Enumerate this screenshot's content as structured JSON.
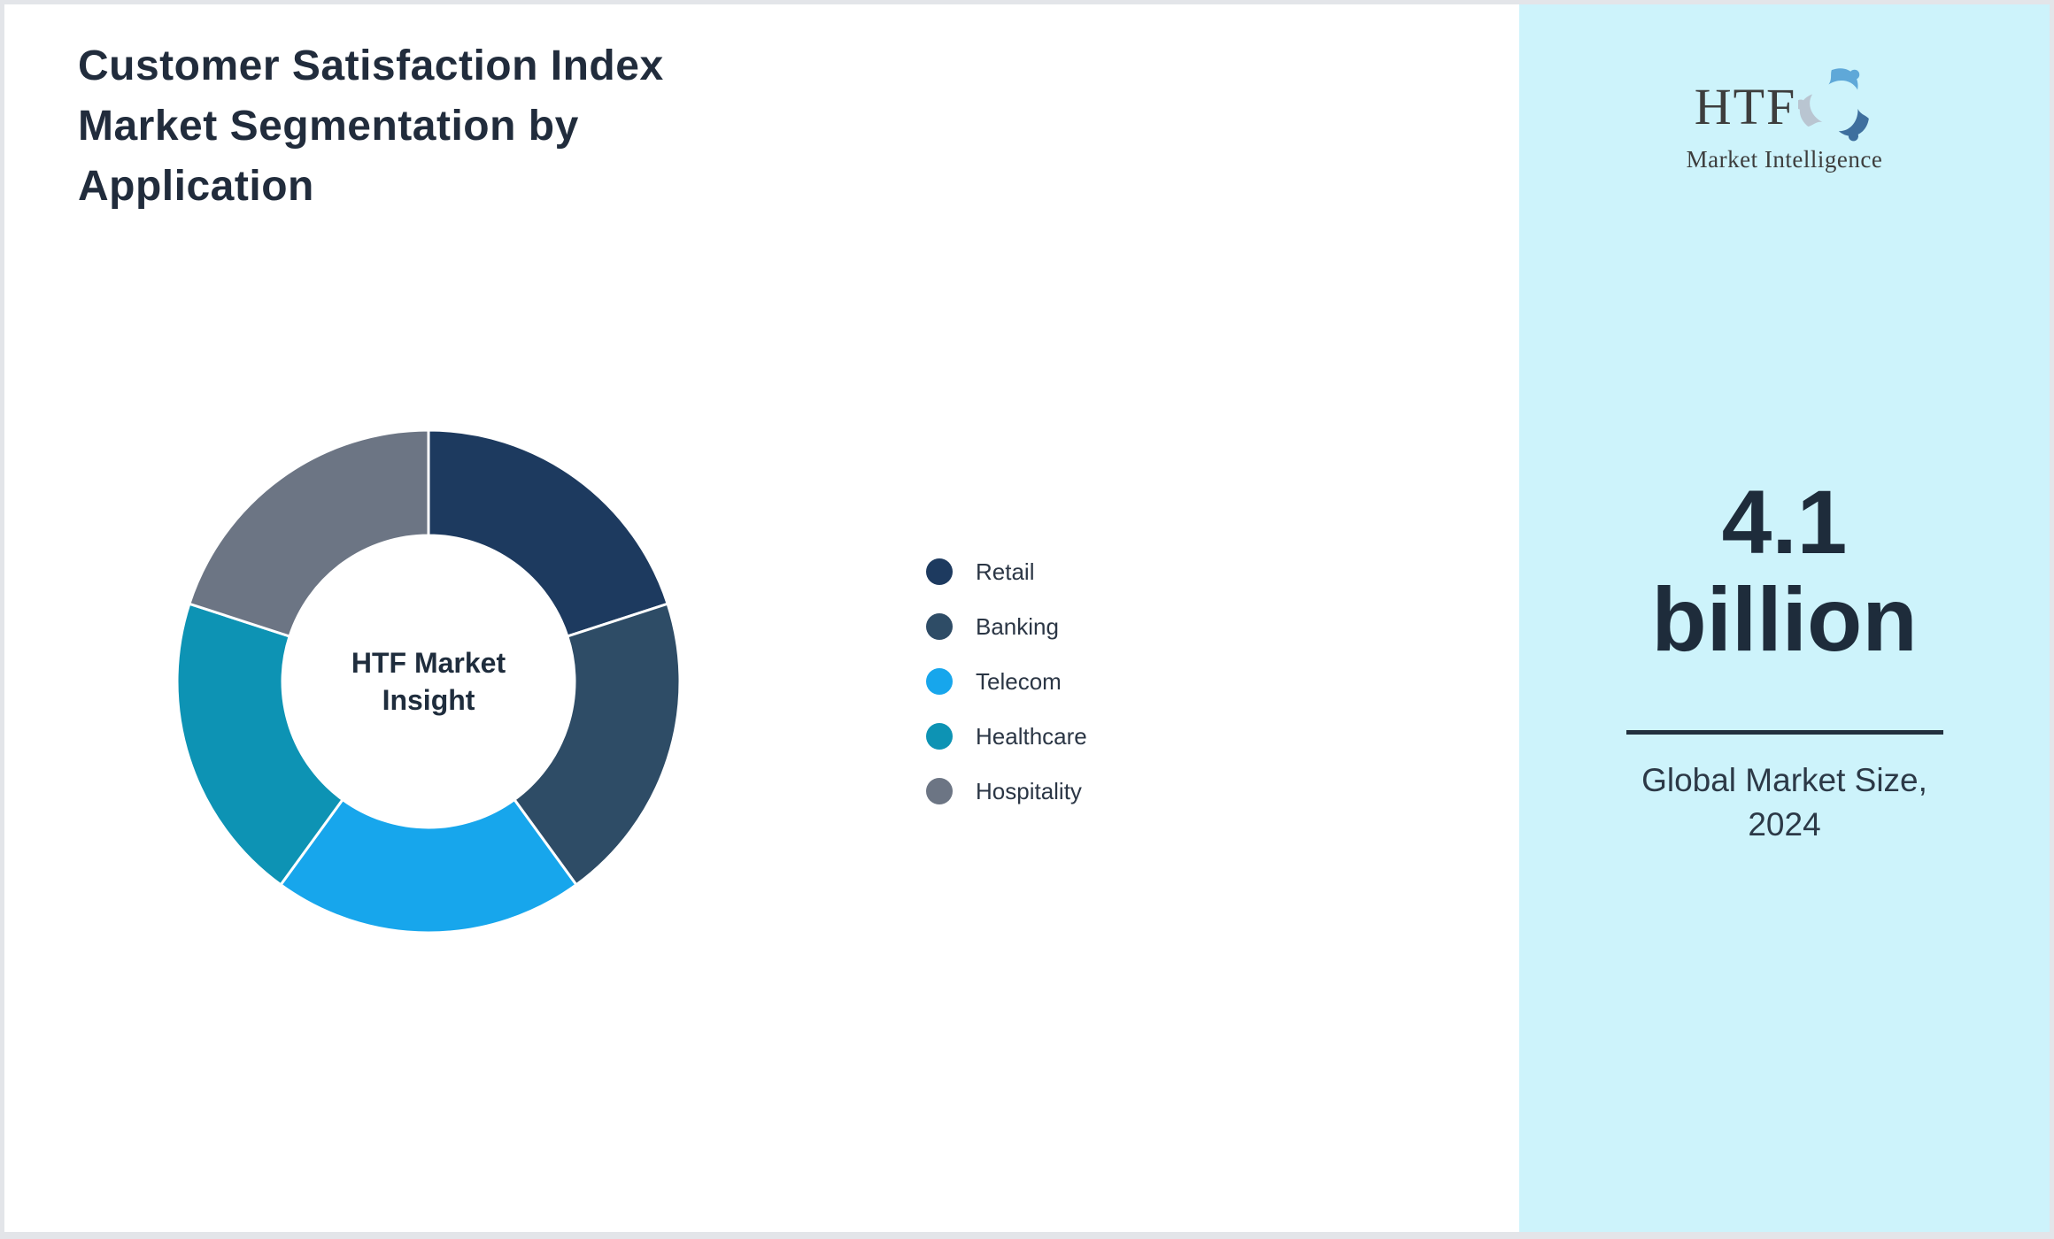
{
  "page": {
    "title": "Customer Satisfaction Index Market Segmentation by Application"
  },
  "chart_data": {
    "type": "pie",
    "subtype": "donut",
    "title": "Customer Satisfaction Index Market Segmentation by Application",
    "center_label": "HTF Market Insight",
    "labels": [
      "Retail",
      "Banking",
      "Telecom",
      "Healthcare",
      "Hospitality"
    ],
    "values": [
      20,
      20,
      20,
      20,
      20
    ],
    "note": "shares estimated from arc angles; segments are visually equal (~72 deg each); no numeric data labels shown in image",
    "colors": [
      "#1d3a5f",
      "#2e4c66",
      "#17a6ec",
      "#0d93b4",
      "#6c7584"
    ],
    "start_angle_deg": 0,
    "direction": "clockwise",
    "inner_radius_ratio": 0.58,
    "slice_gap_color": "#ffffff",
    "legend_position": "right-middle",
    "grid": false
  },
  "sidebar": {
    "background": "#cdf3fb",
    "logo": {
      "text": "HTF",
      "subtext": "Market Intelligence"
    },
    "stat_value": "4.1 billion",
    "stat_label": "Global Market Size, 2024"
  }
}
